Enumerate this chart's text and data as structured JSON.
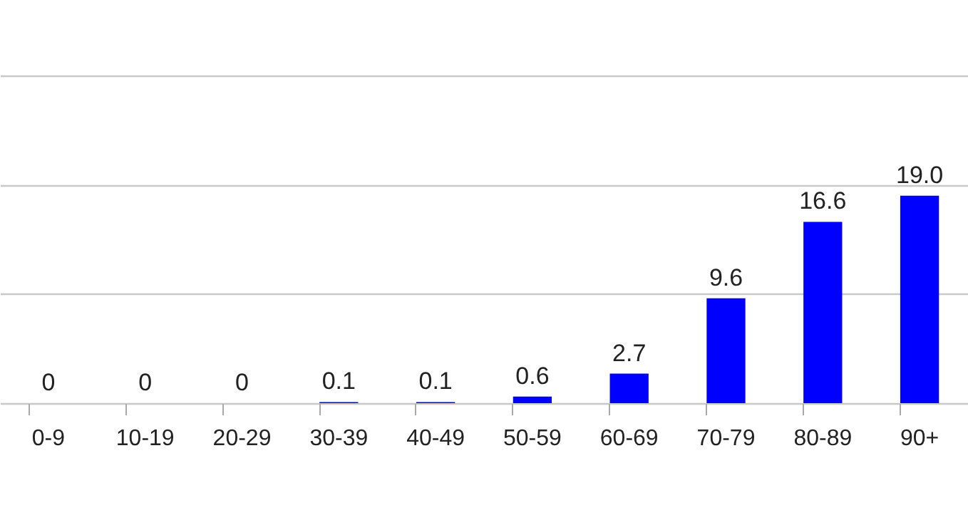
{
  "chart_data": {
    "type": "bar",
    "categories": [
      "0-9",
      "10-19",
      "20-29",
      "30-39",
      "40-49",
      "50-59",
      "60-69",
      "70-79",
      "80-89",
      "90+"
    ],
    "values": [
      0,
      0,
      0,
      0.1,
      0.1,
      0.6,
      2.7,
      9.6,
      16.6,
      19.0
    ],
    "value_labels": [
      "0",
      "0",
      "0",
      "0.1",
      "0.1",
      "0.6",
      "2.7",
      "9.6",
      "16.6",
      "19.0"
    ],
    "color": "#0000ff",
    "ylim": [
      0,
      30
    ],
    "yticks": [
      {
        "value": 0,
        "label": null
      },
      {
        "value": 10,
        "label": null
      },
      {
        "value": 20,
        "label": null
      },
      {
        "value": 30,
        "label": null
      }
    ],
    "grid": "y",
    "tick_labels": "x"
  }
}
